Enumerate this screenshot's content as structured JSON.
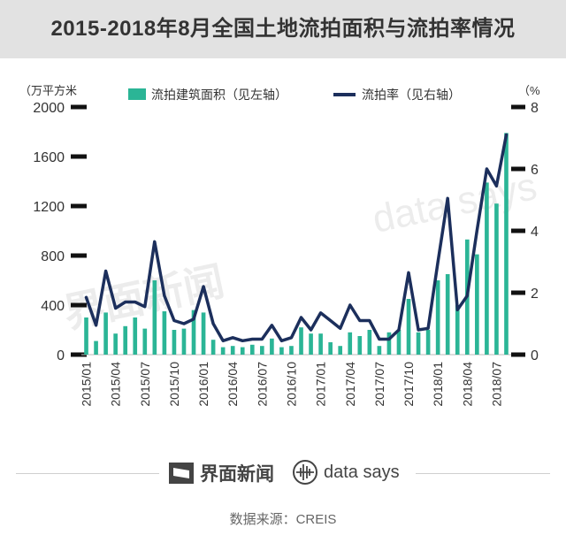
{
  "header": {
    "title": "2015-2018年8月全国土地流拍面积与流拍率情况"
  },
  "watermarks": {
    "brand_left": "界面新闻",
    "brand_right": "data says"
  },
  "footer": {
    "brand_left": "界面新闻",
    "brand_right": "data says",
    "source": "数据来源：CREIS"
  },
  "chart_data": {
    "type": "bar+line",
    "left_unit": "（万平方米",
    "right_unit": "（%",
    "ylim_left": [
      0,
      2000
    ],
    "yticks_left": [
      0,
      400,
      800,
      1200,
      1600,
      2000
    ],
    "ylim_right": [
      0,
      8
    ],
    "yticks_right": [
      0,
      2,
      4,
      6,
      8
    ],
    "x_tick_labels": [
      "2015/01",
      "2015/04",
      "2015/07",
      "2015/10",
      "2016/01",
      "2016/04",
      "2016/07",
      "2016/10",
      "2017/01",
      "2017/04",
      "2017/07",
      "2017/10",
      "2018/01",
      "2018/04",
      "2018/07"
    ],
    "categories": [
      "2015/01",
      "2015/02",
      "2015/03",
      "2015/04",
      "2015/05",
      "2015/06",
      "2015/07",
      "2015/08",
      "2015/09",
      "2015/10",
      "2015/11",
      "2015/12",
      "2016/01",
      "2016/02",
      "2016/03",
      "2016/04",
      "2016/05",
      "2016/06",
      "2016/07",
      "2016/08",
      "2016/09",
      "2016/10",
      "2016/11",
      "2016/12",
      "2017/01",
      "2017/02",
      "2017/03",
      "2017/04",
      "2017/05",
      "2017/06",
      "2017/07",
      "2017/08",
      "2017/09",
      "2017/10",
      "2017/11",
      "2017/12",
      "2018/01",
      "2018/02",
      "2018/03",
      "2018/04",
      "2018/05",
      "2018/06",
      "2018/07",
      "2018/08"
    ],
    "series": [
      {
        "name": "流拍建筑面积（见左轴）",
        "type": "bar",
        "axis": "left",
        "color": "#2bb596",
        "values": [
          300,
          110,
          340,
          170,
          230,
          300,
          210,
          600,
          350,
          200,
          210,
          360,
          340,
          120,
          60,
          70,
          60,
          80,
          70,
          130,
          60,
          70,
          220,
          170,
          170,
          100,
          70,
          180,
          150,
          200,
          70,
          180,
          200,
          450,
          180,
          200,
          600,
          650,
          400,
          930,
          810,
          1390,
          1220,
          1790
        ]
      },
      {
        "name": "流拍率（见右轴）",
        "type": "line",
        "axis": "right",
        "color": "#1c2f5c",
        "values": [
          1.85,
          0.95,
          2.7,
          1.5,
          1.7,
          1.7,
          1.55,
          3.65,
          1.9,
          1.1,
          1.0,
          1.15,
          2.2,
          1.0,
          0.45,
          0.55,
          0.45,
          0.5,
          0.5,
          0.95,
          0.45,
          0.55,
          1.2,
          0.8,
          1.35,
          1.1,
          0.85,
          1.6,
          1.1,
          1.1,
          0.5,
          0.5,
          0.8,
          2.65,
          0.8,
          0.85,
          3.0,
          5.05,
          1.45,
          1.9,
          4.0,
          6.0,
          5.45,
          7.1
        ]
      }
    ]
  }
}
